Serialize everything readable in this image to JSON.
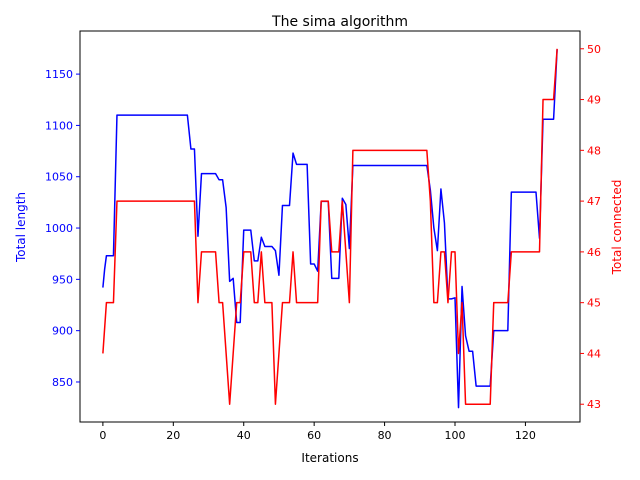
{
  "chart_data": {
    "type": "line",
    "title": "The sima algorithm",
    "xlabel": "Iterations",
    "ylabel_left": "Total length",
    "ylabel_right": "Total connected",
    "xlim": [
      -6.5,
      135.5
    ],
    "ylim_left": [
      811.0,
      1192.0
    ],
    "ylim_right": [
      42.65,
      50.35
    ],
    "xticks": [
      0,
      20,
      40,
      60,
      80,
      100,
      120
    ],
    "yticks_left": [
      850,
      900,
      950,
      1000,
      1050,
      1100,
      1150
    ],
    "yticks_right": [
      43,
      44,
      45,
      46,
      47,
      48,
      49,
      50
    ],
    "grid": false,
    "legend": "none",
    "colors": {
      "left": "#0000ff",
      "right": "#ff0000",
      "axes": "#000000"
    },
    "series": [
      {
        "axis": "left",
        "color": "#0000ff",
        "points": [
          [
            0,
            942
          ],
          [
            0.5,
            960
          ],
          [
            1,
            973
          ],
          [
            3,
            973
          ],
          [
            4,
            1110
          ],
          [
            24,
            1110
          ],
          [
            25,
            1077
          ],
          [
            26,
            1077
          ],
          [
            27,
            992
          ],
          [
            28,
            1053
          ],
          [
            32,
            1053
          ],
          [
            33,
            1047
          ],
          [
            34,
            1047
          ],
          [
            35,
            1020
          ],
          [
            36,
            948
          ],
          [
            37,
            951
          ],
          [
            38,
            908
          ],
          [
            39,
            908
          ],
          [
            40,
            998
          ],
          [
            42,
            998
          ],
          [
            43,
            968
          ],
          [
            44,
            968
          ],
          [
            45,
            991
          ],
          [
            46,
            982
          ],
          [
            48,
            982
          ],
          [
            49,
            978
          ],
          [
            50,
            954
          ],
          [
            51,
            1022
          ],
          [
            53,
            1022
          ],
          [
            54,
            1073
          ],
          [
            55,
            1062
          ],
          [
            58,
            1062
          ],
          [
            59,
            965
          ],
          [
            60,
            965
          ],
          [
            61,
            958
          ],
          [
            62,
            1026
          ],
          [
            64,
            1026
          ],
          [
            65,
            951
          ],
          [
            67,
            951
          ],
          [
            68,
            1029
          ],
          [
            69,
            1023
          ],
          [
            70,
            980
          ],
          [
            71,
            1061
          ],
          [
            92,
            1061
          ],
          [
            93,
            1037
          ],
          [
            94,
            1000
          ],
          [
            95,
            978
          ],
          [
            96,
            1038
          ],
          [
            97,
            1005
          ],
          [
            98,
            931
          ],
          [
            99,
            931
          ],
          [
            100,
            932
          ],
          [
            101,
            825
          ],
          [
            102,
            943
          ],
          [
            103,
            895
          ],
          [
            104,
            880
          ],
          [
            105,
            880
          ],
          [
            106,
            846
          ],
          [
            110,
            846
          ],
          [
            111,
            900
          ],
          [
            115,
            900
          ],
          [
            116,
            1035
          ],
          [
            123,
            1035
          ],
          [
            124,
            990
          ],
          [
            125,
            1106
          ],
          [
            128,
            1106
          ],
          [
            129,
            1174
          ]
        ]
      },
      {
        "axis": "right",
        "color": "#ff0000",
        "points": [
          [
            0,
            44
          ],
          [
            1,
            45
          ],
          [
            3,
            45
          ],
          [
            4,
            47
          ],
          [
            25,
            47
          ],
          [
            26,
            47
          ],
          [
            27,
            45
          ],
          [
            28,
            46
          ],
          [
            32,
            46
          ],
          [
            33,
            45
          ],
          [
            34,
            45
          ],
          [
            36,
            43
          ],
          [
            37,
            44
          ],
          [
            38,
            45
          ],
          [
            39,
            45
          ],
          [
            40,
            46
          ],
          [
            42,
            46
          ],
          [
            43,
            45
          ],
          [
            44,
            45
          ],
          [
            45,
            46
          ],
          [
            46,
            45
          ],
          [
            48,
            45
          ],
          [
            49,
            43
          ],
          [
            50,
            44
          ],
          [
            51,
            45
          ],
          [
            53,
            45
          ],
          [
            54,
            46
          ],
          [
            55,
            45
          ],
          [
            61,
            45
          ],
          [
            62,
            47
          ],
          [
            64,
            47
          ],
          [
            65,
            46
          ],
          [
            67,
            46
          ],
          [
            68,
            47
          ],
          [
            69,
            46
          ],
          [
            70,
            45
          ],
          [
            71,
            48
          ],
          [
            92,
            48
          ],
          [
            93,
            47
          ],
          [
            94,
            45
          ],
          [
            95,
            45
          ],
          [
            96,
            46
          ],
          [
            97,
            46
          ],
          [
            98,
            45
          ],
          [
            99,
            46
          ],
          [
            100,
            46
          ],
          [
            101,
            44
          ],
          [
            102,
            45
          ],
          [
            103,
            43
          ],
          [
            110,
            43
          ],
          [
            111,
            45
          ],
          [
            115,
            45
          ],
          [
            116,
            46
          ],
          [
            124,
            46
          ],
          [
            125,
            49
          ],
          [
            128,
            49
          ],
          [
            129,
            50
          ]
        ]
      }
    ]
  }
}
